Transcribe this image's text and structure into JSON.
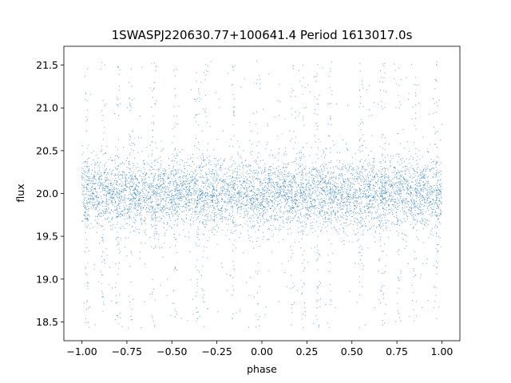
{
  "chart_data": {
    "type": "scatter",
    "title": "1SWASPJ220630.77+100641.4 Period 1613017.0s",
    "xlabel": "phase",
    "ylabel": "flux",
    "xlim": [
      -1.1,
      1.1
    ],
    "ylim": [
      18.28,
      21.72
    ],
    "xticks": [
      -1.0,
      -0.75,
      -0.5,
      -0.25,
      0.0,
      0.25,
      0.5,
      0.75,
      1.0
    ],
    "xtick_labels": [
      "−1.00",
      "−0.75",
      "−0.50",
      "−0.25",
      "0.00",
      "0.25",
      "0.50",
      "0.75",
      "1.00"
    ],
    "yticks": [
      18.5,
      19.0,
      19.5,
      20.0,
      20.5,
      21.0,
      21.5
    ],
    "ytick_labels": [
      "18.5",
      "19.0",
      "19.5",
      "20.0",
      "20.5",
      "21.0",
      "21.5"
    ],
    "grid": false,
    "legend": "none",
    "series": [
      {
        "color": "#1f77b4",
        "x_range": [
          -1.0,
          1.0
        ],
        "y_range": [
          18.42,
          21.55
        ],
        "core_center": 20.0,
        "core_halfwidth": 0.23,
        "dense_phases": [
          -0.97,
          -0.88,
          -0.8,
          -0.73,
          -0.6,
          -0.48,
          -0.36,
          -0.32,
          -0.16,
          -0.02,
          0.17,
          0.23,
          0.31,
          0.38,
          0.55,
          0.66,
          0.68,
          0.76,
          0.85,
          0.97
        ]
      }
    ]
  }
}
